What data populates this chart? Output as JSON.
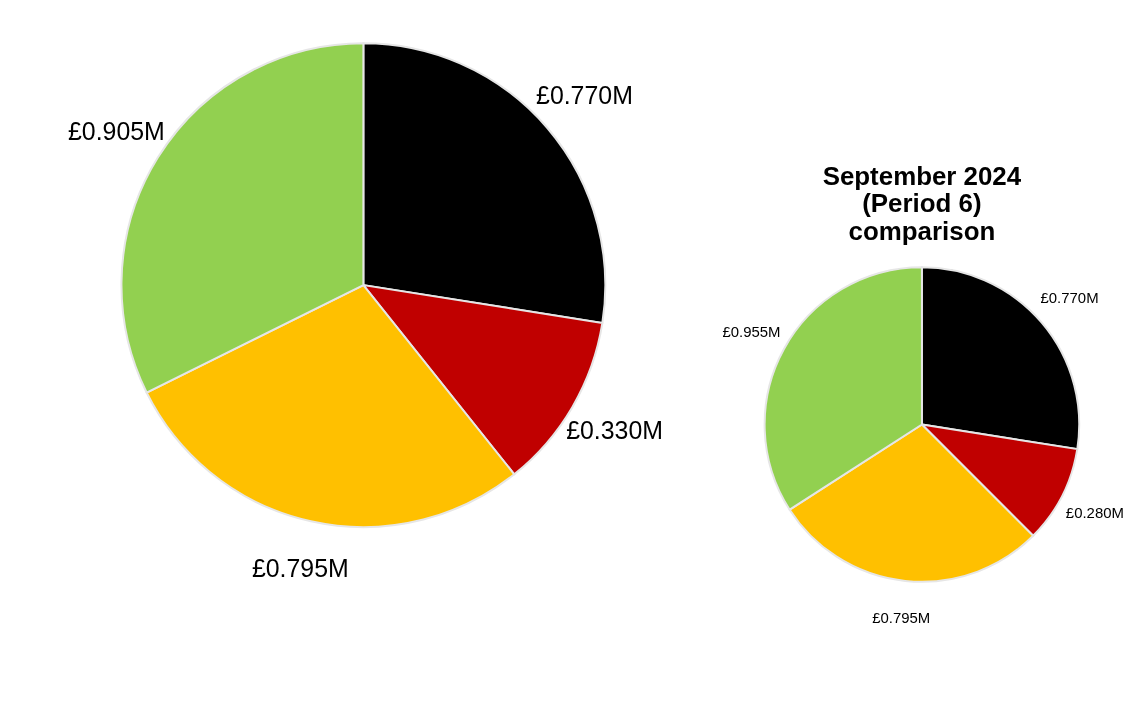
{
  "chart_data": [
    {
      "type": "pie",
      "categories": [
        null,
        null,
        null,
        null
      ],
      "values": [
        0.77,
        0.33,
        0.795,
        0.905
      ],
      "colors": [
        "#000000",
        "#c00000",
        "#ffc000",
        "#92d050"
      ],
      "value_labels": [
        "£0.770M",
        "£0.330M",
        "£0.795M",
        "£0.905M"
      ]
    },
    {
      "type": "pie",
      "title": "September 2024 (Period 6) comparison",
      "categories": [
        null,
        null,
        null,
        null
      ],
      "values": [
        0.77,
        0.28,
        0.795,
        0.955
      ],
      "colors": [
        "#000000",
        "#c00000",
        "#ffc000",
        "#92d050"
      ],
      "value_labels": [
        "£0.770M",
        "£0.280M",
        "£0.795M",
        "£0.955M"
      ]
    }
  ]
}
